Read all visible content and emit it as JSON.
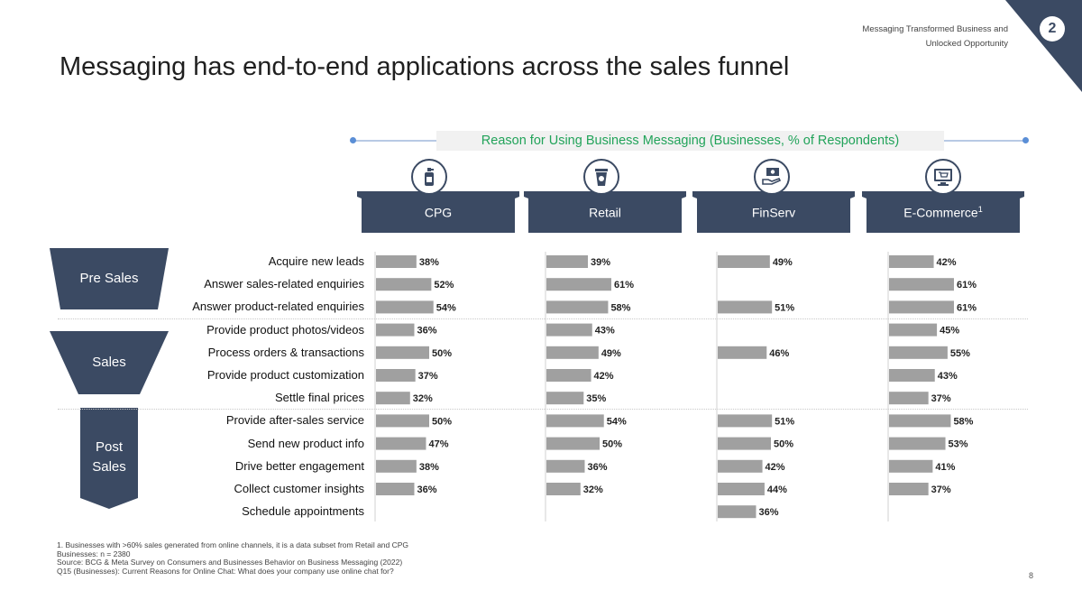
{
  "header": {
    "subtitle_line1": "Messaging Transformed Business and",
    "subtitle_line2": "Unlocked Opportunity",
    "section_number": "2"
  },
  "title": "Messaging has end-to-end applications across the sales funnel",
  "colors": {
    "navy": "#3b4a63",
    "bar": "#a0a0a0",
    "green_text": "#22a35a",
    "axis_line": "#b8c9e4"
  },
  "chart_data": {
    "type": "bar",
    "orientation": "horizontal",
    "title": "Reason for Using Business Messaging (Businesses, % of Respondents)",
    "value_unit": "%",
    "stages": [
      {
        "line1": "Pre Sales",
        "line2": ""
      },
      {
        "line1": "Sales",
        "line2": ""
      },
      {
        "line1": "Post",
        "line2": "Sales"
      }
    ],
    "categories": [
      "Acquire new leads",
      "Answer sales-related enquiries",
      "Answer product-related enquiries",
      "Provide product photos/videos",
      "Process orders & transactions",
      "Provide product customization",
      "Settle final prices",
      "Provide after-sales service",
      "Send new product info",
      "Drive better engagement",
      "Collect customer insights",
      "Schedule appointments"
    ],
    "series": [
      {
        "name": "CPG",
        "suffix": "",
        "icon": "hand-sanitizer-icon",
        "values": [
          38,
          52,
          54,
          36,
          50,
          37,
          32,
          50,
          47,
          38,
          36,
          null
        ]
      },
      {
        "name": "Retail",
        "suffix": "",
        "icon": "coffee-cup-icon",
        "values": [
          39,
          61,
          58,
          43,
          49,
          42,
          35,
          54,
          50,
          36,
          32,
          null
        ]
      },
      {
        "name": "FinServ",
        "suffix": "",
        "icon": "money-hand-icon",
        "values": [
          49,
          null,
          51,
          null,
          46,
          null,
          null,
          51,
          50,
          42,
          44,
          36
        ]
      },
      {
        "name": "E-Commerce",
        "suffix": "1",
        "icon": "computer-cart-icon",
        "values": [
          42,
          61,
          61,
          45,
          55,
          43,
          37,
          58,
          53,
          41,
          37,
          null
        ]
      }
    ]
  },
  "footnotes": [
    "1. Businesses with >60% sales generated from online channels, it is a data subset from Retail and CPG",
    "Businesses: n = 2380",
    "Source: BCG & Meta Survey on Consumers and Businesses Behavior on Business Messaging (2022)",
    "Q15 (Businesses): Current Reasons for Online Chat: What does your company use online chat for?"
  ],
  "page_number": "8"
}
